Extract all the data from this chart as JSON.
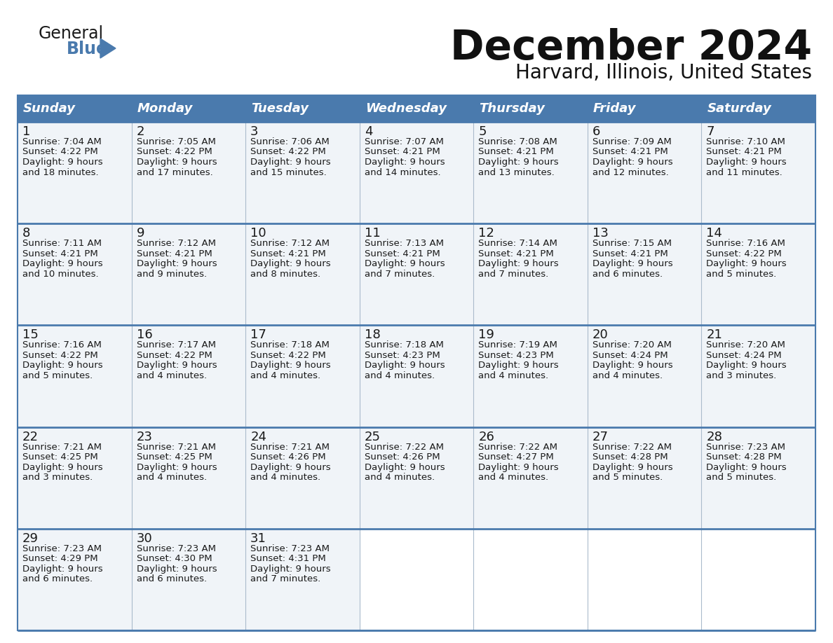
{
  "title": "December 2024",
  "subtitle": "Harvard, Illinois, United States",
  "header_color": "#4a7aad",
  "header_text_color": "#ffffff",
  "cell_bg_color": "#f0f4f8",
  "empty_cell_bg": "#ffffff",
  "border_color": "#4a7aad",
  "text_color": "#1a1a1a",
  "days_of_week": [
    "Sunday",
    "Monday",
    "Tuesday",
    "Wednesday",
    "Thursday",
    "Friday",
    "Saturday"
  ],
  "calendar_data": [
    [
      {
        "day": 1,
        "sunrise": "7:04 AM",
        "sunset": "4:22 PM",
        "daylight": "9 hours",
        "daylight2": "and 18 minutes."
      },
      {
        "day": 2,
        "sunrise": "7:05 AM",
        "sunset": "4:22 PM",
        "daylight": "9 hours",
        "daylight2": "and 17 minutes."
      },
      {
        "day": 3,
        "sunrise": "7:06 AM",
        "sunset": "4:22 PM",
        "daylight": "9 hours",
        "daylight2": "and 15 minutes."
      },
      {
        "day": 4,
        "sunrise": "7:07 AM",
        "sunset": "4:21 PM",
        "daylight": "9 hours",
        "daylight2": "and 14 minutes."
      },
      {
        "day": 5,
        "sunrise": "7:08 AM",
        "sunset": "4:21 PM",
        "daylight": "9 hours",
        "daylight2": "and 13 minutes."
      },
      {
        "day": 6,
        "sunrise": "7:09 AM",
        "sunset": "4:21 PM",
        "daylight": "9 hours",
        "daylight2": "and 12 minutes."
      },
      {
        "day": 7,
        "sunrise": "7:10 AM",
        "sunset": "4:21 PM",
        "daylight": "9 hours",
        "daylight2": "and 11 minutes."
      }
    ],
    [
      {
        "day": 8,
        "sunrise": "7:11 AM",
        "sunset": "4:21 PM",
        "daylight": "9 hours",
        "daylight2": "and 10 minutes."
      },
      {
        "day": 9,
        "sunrise": "7:12 AM",
        "sunset": "4:21 PM",
        "daylight": "9 hours",
        "daylight2": "and 9 minutes."
      },
      {
        "day": 10,
        "sunrise": "7:12 AM",
        "sunset": "4:21 PM",
        "daylight": "9 hours",
        "daylight2": "and 8 minutes."
      },
      {
        "day": 11,
        "sunrise": "7:13 AM",
        "sunset": "4:21 PM",
        "daylight": "9 hours",
        "daylight2": "and 7 minutes."
      },
      {
        "day": 12,
        "sunrise": "7:14 AM",
        "sunset": "4:21 PM",
        "daylight": "9 hours",
        "daylight2": "and 7 minutes."
      },
      {
        "day": 13,
        "sunrise": "7:15 AM",
        "sunset": "4:21 PM",
        "daylight": "9 hours",
        "daylight2": "and 6 minutes."
      },
      {
        "day": 14,
        "sunrise": "7:16 AM",
        "sunset": "4:22 PM",
        "daylight": "9 hours",
        "daylight2": "and 5 minutes."
      }
    ],
    [
      {
        "day": 15,
        "sunrise": "7:16 AM",
        "sunset": "4:22 PM",
        "daylight": "9 hours",
        "daylight2": "and 5 minutes."
      },
      {
        "day": 16,
        "sunrise": "7:17 AM",
        "sunset": "4:22 PM",
        "daylight": "9 hours",
        "daylight2": "and 4 minutes."
      },
      {
        "day": 17,
        "sunrise": "7:18 AM",
        "sunset": "4:22 PM",
        "daylight": "9 hours",
        "daylight2": "and 4 minutes."
      },
      {
        "day": 18,
        "sunrise": "7:18 AM",
        "sunset": "4:23 PM",
        "daylight": "9 hours",
        "daylight2": "and 4 minutes."
      },
      {
        "day": 19,
        "sunrise": "7:19 AM",
        "sunset": "4:23 PM",
        "daylight": "9 hours",
        "daylight2": "and 4 minutes."
      },
      {
        "day": 20,
        "sunrise": "7:20 AM",
        "sunset": "4:24 PM",
        "daylight": "9 hours",
        "daylight2": "and 4 minutes."
      },
      {
        "day": 21,
        "sunrise": "7:20 AM",
        "sunset": "4:24 PM",
        "daylight": "9 hours",
        "daylight2": "and 3 minutes."
      }
    ],
    [
      {
        "day": 22,
        "sunrise": "7:21 AM",
        "sunset": "4:25 PM",
        "daylight": "9 hours",
        "daylight2": "and 3 minutes."
      },
      {
        "day": 23,
        "sunrise": "7:21 AM",
        "sunset": "4:25 PM",
        "daylight": "9 hours",
        "daylight2": "and 4 minutes."
      },
      {
        "day": 24,
        "sunrise": "7:21 AM",
        "sunset": "4:26 PM",
        "daylight": "9 hours",
        "daylight2": "and 4 minutes."
      },
      {
        "day": 25,
        "sunrise": "7:22 AM",
        "sunset": "4:26 PM",
        "daylight": "9 hours",
        "daylight2": "and 4 minutes."
      },
      {
        "day": 26,
        "sunrise": "7:22 AM",
        "sunset": "4:27 PM",
        "daylight": "9 hours",
        "daylight2": "and 4 minutes."
      },
      {
        "day": 27,
        "sunrise": "7:22 AM",
        "sunset": "4:28 PM",
        "daylight": "9 hours",
        "daylight2": "and 5 minutes."
      },
      {
        "day": 28,
        "sunrise": "7:23 AM",
        "sunset": "4:28 PM",
        "daylight": "9 hours",
        "daylight2": "and 5 minutes."
      }
    ],
    [
      {
        "day": 29,
        "sunrise": "7:23 AM",
        "sunset": "4:29 PM",
        "daylight": "9 hours",
        "daylight2": "and 6 minutes."
      },
      {
        "day": 30,
        "sunrise": "7:23 AM",
        "sunset": "4:30 PM",
        "daylight": "9 hours",
        "daylight2": "and 6 minutes."
      },
      {
        "day": 31,
        "sunrise": "7:23 AM",
        "sunset": "4:31 PM",
        "daylight": "9 hours",
        "daylight2": "and 7 minutes."
      },
      null,
      null,
      null,
      null
    ]
  ],
  "logo_general_color": "#1a1a1a",
  "logo_blue_color": "#4a7aad",
  "logo_triangle_color": "#4a7aad",
  "title_fontsize": 42,
  "subtitle_fontsize": 20,
  "header_fontsize": 13,
  "day_num_fontsize": 13,
  "cell_text_fontsize": 9.5
}
